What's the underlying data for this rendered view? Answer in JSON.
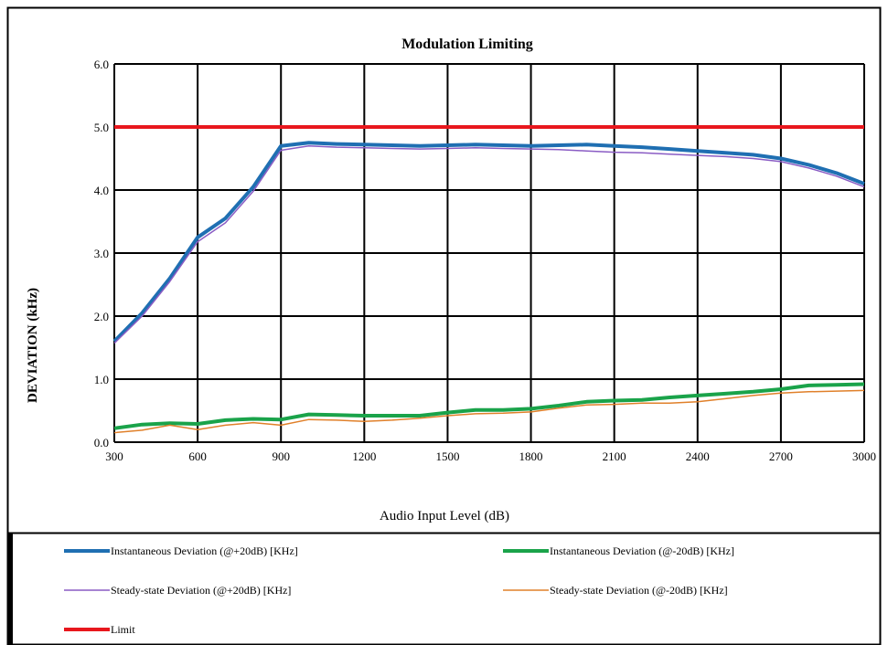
{
  "chart_data": {
    "type": "line",
    "title": "Modulation Limiting",
    "xlabel": "Audio Input Level (dB)",
    "ylabel": "DEVIATION (kHz)",
    "xlim": [
      300,
      3000
    ],
    "ylim": [
      0,
      6
    ],
    "x_ticks": [
      "300",
      "600",
      "900",
      "1200",
      "1500",
      "1800",
      "2100",
      "2400",
      "2700",
      "3000"
    ],
    "y_ticks": [
      "0.0",
      "1.0",
      "2.0",
      "3.0",
      "4.0",
      "5.0",
      "6.0"
    ],
    "grid": true,
    "legend_position": "bottom",
    "x": [
      300,
      400,
      500,
      600,
      700,
      800,
      900,
      1000,
      1100,
      1200,
      1300,
      1400,
      1500,
      1600,
      1700,
      1800,
      1900,
      2000,
      2100,
      2200,
      2300,
      2400,
      2500,
      2600,
      2700,
      2800,
      2900,
      3000
    ],
    "series": [
      {
        "name": "Instantaneous Deviation (@+20dB) [KHz]",
        "color": "#1f6fb2",
        "width": 4,
        "values": [
          1.6,
          2.05,
          2.6,
          3.25,
          3.55,
          4.05,
          4.7,
          4.75,
          4.73,
          4.72,
          4.71,
          4.7,
          4.71,
          4.72,
          4.71,
          4.7,
          4.71,
          4.72,
          4.7,
          4.68,
          4.65,
          4.62,
          4.59,
          4.56,
          4.5,
          4.4,
          4.27,
          4.1
        ]
      },
      {
        "name": "Instantaneous Deviation (@-20dB) [KHz]",
        "color": "#1aa34a",
        "width": 4,
        "values": [
          0.22,
          0.28,
          0.3,
          0.29,
          0.35,
          0.37,
          0.36,
          0.44,
          0.43,
          0.42,
          0.42,
          0.42,
          0.47,
          0.51,
          0.51,
          0.53,
          0.58,
          0.64,
          0.66,
          0.67,
          0.71,
          0.74,
          0.77,
          0.8,
          0.84,
          0.9,
          0.91,
          0.92
        ]
      },
      {
        "name": "Steady-state Deviation (@+20dB) [KHz]",
        "color": "#8a5cc4",
        "width": 1.5,
        "values": [
          1.57,
          2.0,
          2.55,
          3.18,
          3.48,
          3.98,
          4.63,
          4.7,
          4.68,
          4.67,
          4.66,
          4.65,
          4.66,
          4.67,
          4.66,
          4.65,
          4.64,
          4.62,
          4.6,
          4.59,
          4.57,
          4.55,
          4.53,
          4.5,
          4.45,
          4.35,
          4.22,
          4.05
        ]
      },
      {
        "name": "Steady-state Deviation (@-20dB) [KHz]",
        "color": "#e0802a",
        "width": 1.5,
        "values": [
          0.15,
          0.19,
          0.27,
          0.2,
          0.27,
          0.31,
          0.27,
          0.36,
          0.35,
          0.33,
          0.35,
          0.38,
          0.42,
          0.45,
          0.46,
          0.48,
          0.54,
          0.59,
          0.6,
          0.62,
          0.62,
          0.64,
          0.69,
          0.74,
          0.78,
          0.8,
          0.81,
          0.82
        ]
      },
      {
        "name": "Limit",
        "color": "#e8171d",
        "width": 4,
        "values": [
          5,
          5,
          5,
          5,
          5,
          5,
          5,
          5,
          5,
          5,
          5,
          5,
          5,
          5,
          5,
          5,
          5,
          5,
          5,
          5,
          5,
          5,
          5,
          5,
          5,
          5,
          5,
          5
        ]
      }
    ]
  }
}
